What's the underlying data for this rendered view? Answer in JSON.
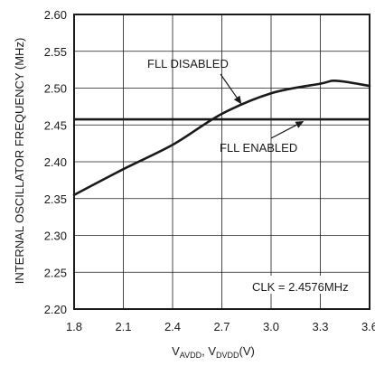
{
  "chart_data": {
    "type": "line",
    "ylabel": "INTERNAL OSCILLATOR FREQUENCY (MHz)",
    "xlabel": {
      "part1_main": "V",
      "part1_sub": "AVDD",
      "separator": ", ",
      "part2_main": "V",
      "part2_sub": "DVDD",
      "unit": "(V)"
    },
    "xlim": [
      1.8,
      3.6
    ],
    "ylim": [
      2.2,
      2.6
    ],
    "x_ticks": [
      "1.8",
      "2.1",
      "2.4",
      "2.7",
      "3.0",
      "3.3",
      "3.6"
    ],
    "y_ticks": [
      "2.60",
      "2.55",
      "2.50",
      "2.45",
      "2.40",
      "2.35",
      "2.30",
      "2.25",
      "2.20"
    ],
    "grid": true,
    "series": [
      {
        "name": "FLL DISABLED",
        "x": [
          1.8,
          2.1,
          2.4,
          2.7,
          3.0,
          3.3,
          3.4,
          3.6
        ],
        "y": [
          2.355,
          2.39,
          2.423,
          2.465,
          2.493,
          2.506,
          2.51,
          2.503
        ]
      },
      {
        "name": "FLL ENABLED",
        "x": [
          1.8,
          2.1,
          2.4,
          2.7,
          3.0,
          3.3,
          3.6
        ],
        "y": [
          2.4576,
          2.4576,
          2.4576,
          2.4576,
          2.4576,
          2.4576,
          2.4576
        ]
      }
    ],
    "annotations": [
      {
        "id": "fll-disabled",
        "text": "FLL DISABLED",
        "arrow_to": [
          2.82,
          2.478
        ]
      },
      {
        "id": "fll-enabled",
        "text": "FLL ENABLED",
        "arrow_to": [
          3.2,
          2.4576
        ]
      },
      {
        "id": "clk-note",
        "text": "CLK = 2.4576MHz"
      }
    ]
  }
}
